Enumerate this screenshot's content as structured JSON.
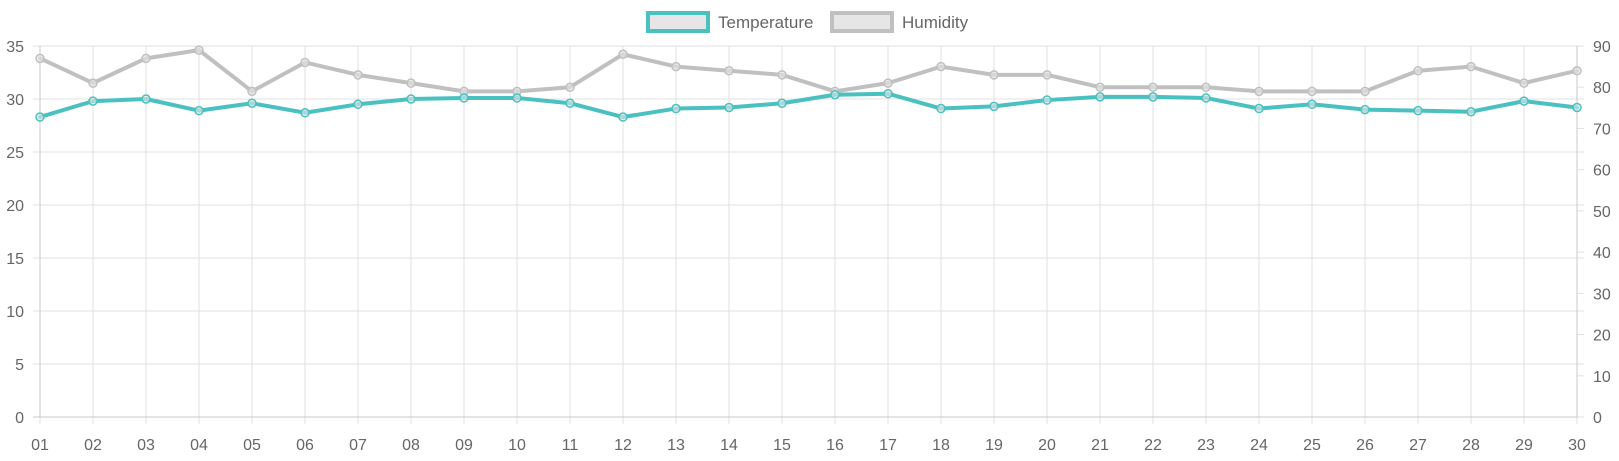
{
  "chart_data": {
    "type": "line",
    "title": "",
    "xlabel": "",
    "ylabel": "",
    "categories": [
      "01",
      "02",
      "03",
      "04",
      "05",
      "06",
      "07",
      "08",
      "09",
      "10",
      "11",
      "12",
      "13",
      "14",
      "15",
      "16",
      "17",
      "18",
      "19",
      "20",
      "21",
      "22",
      "23",
      "24",
      "25",
      "26",
      "27",
      "28",
      "29",
      "30"
    ],
    "grid": true,
    "legend_position": "top-center",
    "y_left": {
      "range": [
        0,
        35
      ],
      "ticks": [
        "0",
        "5",
        "10",
        "15",
        "20",
        "25",
        "30",
        "35"
      ]
    },
    "y_right": {
      "range": [
        0,
        90
      ],
      "ticks": [
        "0",
        "10",
        "20",
        "30",
        "40",
        "50",
        "60",
        "70",
        "80",
        "90"
      ]
    },
    "series": [
      {
        "name": "Temperature",
        "axis": "left",
        "color": "#4bc0c0",
        "values": [
          28.3,
          29.8,
          30.0,
          28.9,
          29.6,
          28.7,
          29.5,
          30.0,
          30.1,
          30.1,
          29.6,
          28.3,
          29.1,
          29.2,
          29.6,
          30.4,
          30.5,
          29.1,
          29.3,
          29.9,
          30.2,
          30.2,
          30.1,
          29.1,
          29.5,
          29.0,
          28.9,
          28.8,
          29.8,
          29.2
        ]
      },
      {
        "name": "Humidity",
        "axis": "right",
        "color": "#c0c0c0",
        "values": [
          87,
          81,
          87,
          89,
          79,
          86,
          83,
          81,
          79,
          79,
          80,
          88,
          85,
          84,
          83,
          79,
          81,
          85,
          83,
          83,
          80,
          80,
          80,
          79,
          79,
          79,
          84,
          85,
          81,
          84
        ]
      }
    ]
  }
}
